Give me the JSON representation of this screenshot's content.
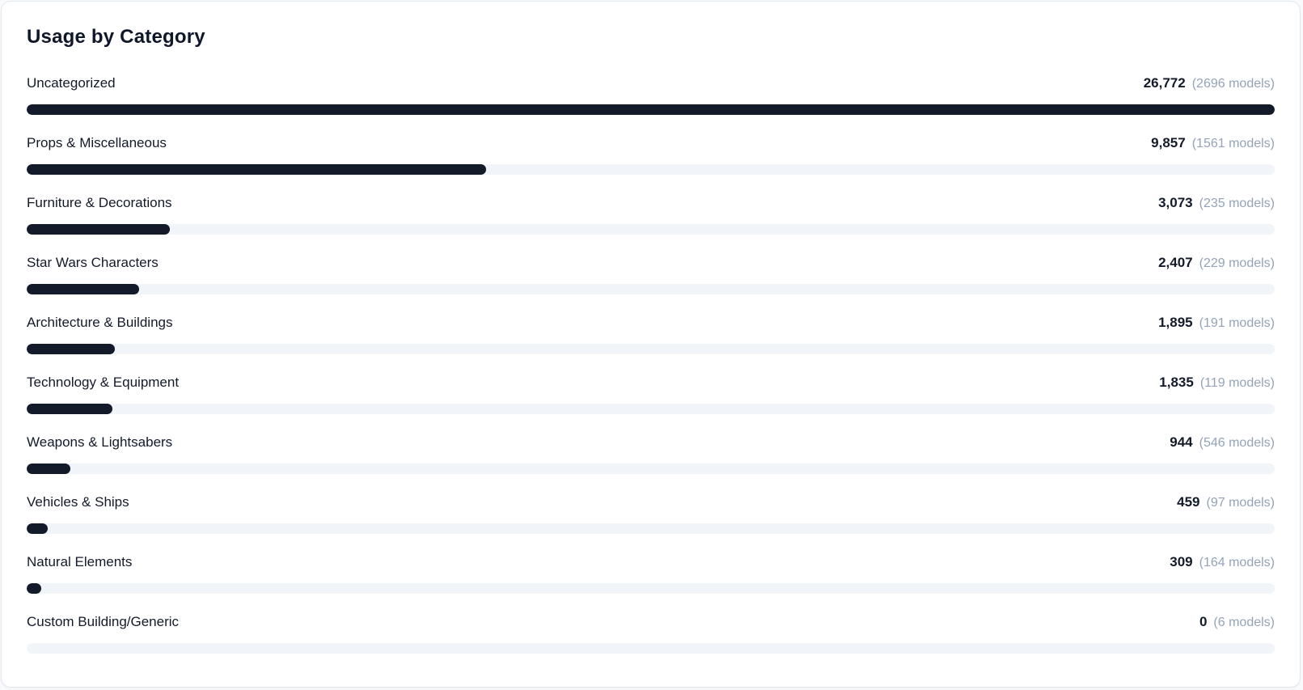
{
  "card": {
    "title": "Usage by Category"
  },
  "colors": {
    "page_bg": "#f8fafc",
    "card_bg": "#ffffff",
    "card_border": "#e2e8f0",
    "bar_fill": "#131a2a",
    "bar_track": "#f1f5f9",
    "label_text": "#131a2a",
    "value_text": "#131a2a",
    "models_text": "#94a3b8"
  },
  "rows": [
    {
      "label": "Uncategorized",
      "value": 26772,
      "value_display": "26,772",
      "models_display": "(2696 models)"
    },
    {
      "label": "Props & Miscellaneous",
      "value": 9857,
      "value_display": "9,857",
      "models_display": "(1561 models)"
    },
    {
      "label": "Furniture & Decorations",
      "value": 3073,
      "value_display": "3,073",
      "models_display": "(235 models)"
    },
    {
      "label": "Star Wars Characters",
      "value": 2407,
      "value_display": "2,407",
      "models_display": "(229 models)"
    },
    {
      "label": "Architecture & Buildings",
      "value": 1895,
      "value_display": "1,895",
      "models_display": "(191 models)"
    },
    {
      "label": "Technology & Equipment",
      "value": 1835,
      "value_display": "1,835",
      "models_display": "(119 models)"
    },
    {
      "label": "Weapons & Lightsabers",
      "value": 944,
      "value_display": "944",
      "models_display": "(546 models)"
    },
    {
      "label": "Vehicles & Ships",
      "value": 459,
      "value_display": "459",
      "models_display": "(97 models)"
    },
    {
      "label": "Natural Elements",
      "value": 309,
      "value_display": "309",
      "models_display": "(164 models)"
    },
    {
      "label": "Custom Building/Generic",
      "value": 0,
      "value_display": "0",
      "models_display": "(6 models)"
    }
  ],
  "chart_data": {
    "type": "bar",
    "orientation": "horizontal",
    "title": "Usage by Category",
    "categories": [
      "Uncategorized",
      "Props & Miscellaneous",
      "Furniture & Decorations",
      "Star Wars Characters",
      "Architecture & Buildings",
      "Technology & Equipment",
      "Weapons & Lightsabers",
      "Vehicles & Ships",
      "Natural Elements",
      "Custom Building/Generic"
    ],
    "series": [
      {
        "name": "usage_count",
        "values": [
          26772,
          9857,
          3073,
          2407,
          1895,
          1835,
          944,
          459,
          309,
          0
        ]
      },
      {
        "name": "models_count",
        "values": [
          2696,
          1561,
          235,
          229,
          191,
          119,
          546,
          97,
          164,
          6
        ]
      }
    ],
    "xlim": [
      0,
      26772
    ],
    "grid": false,
    "legend": false,
    "bar_color": "#131a2a",
    "track_color": "#f1f5f9"
  }
}
